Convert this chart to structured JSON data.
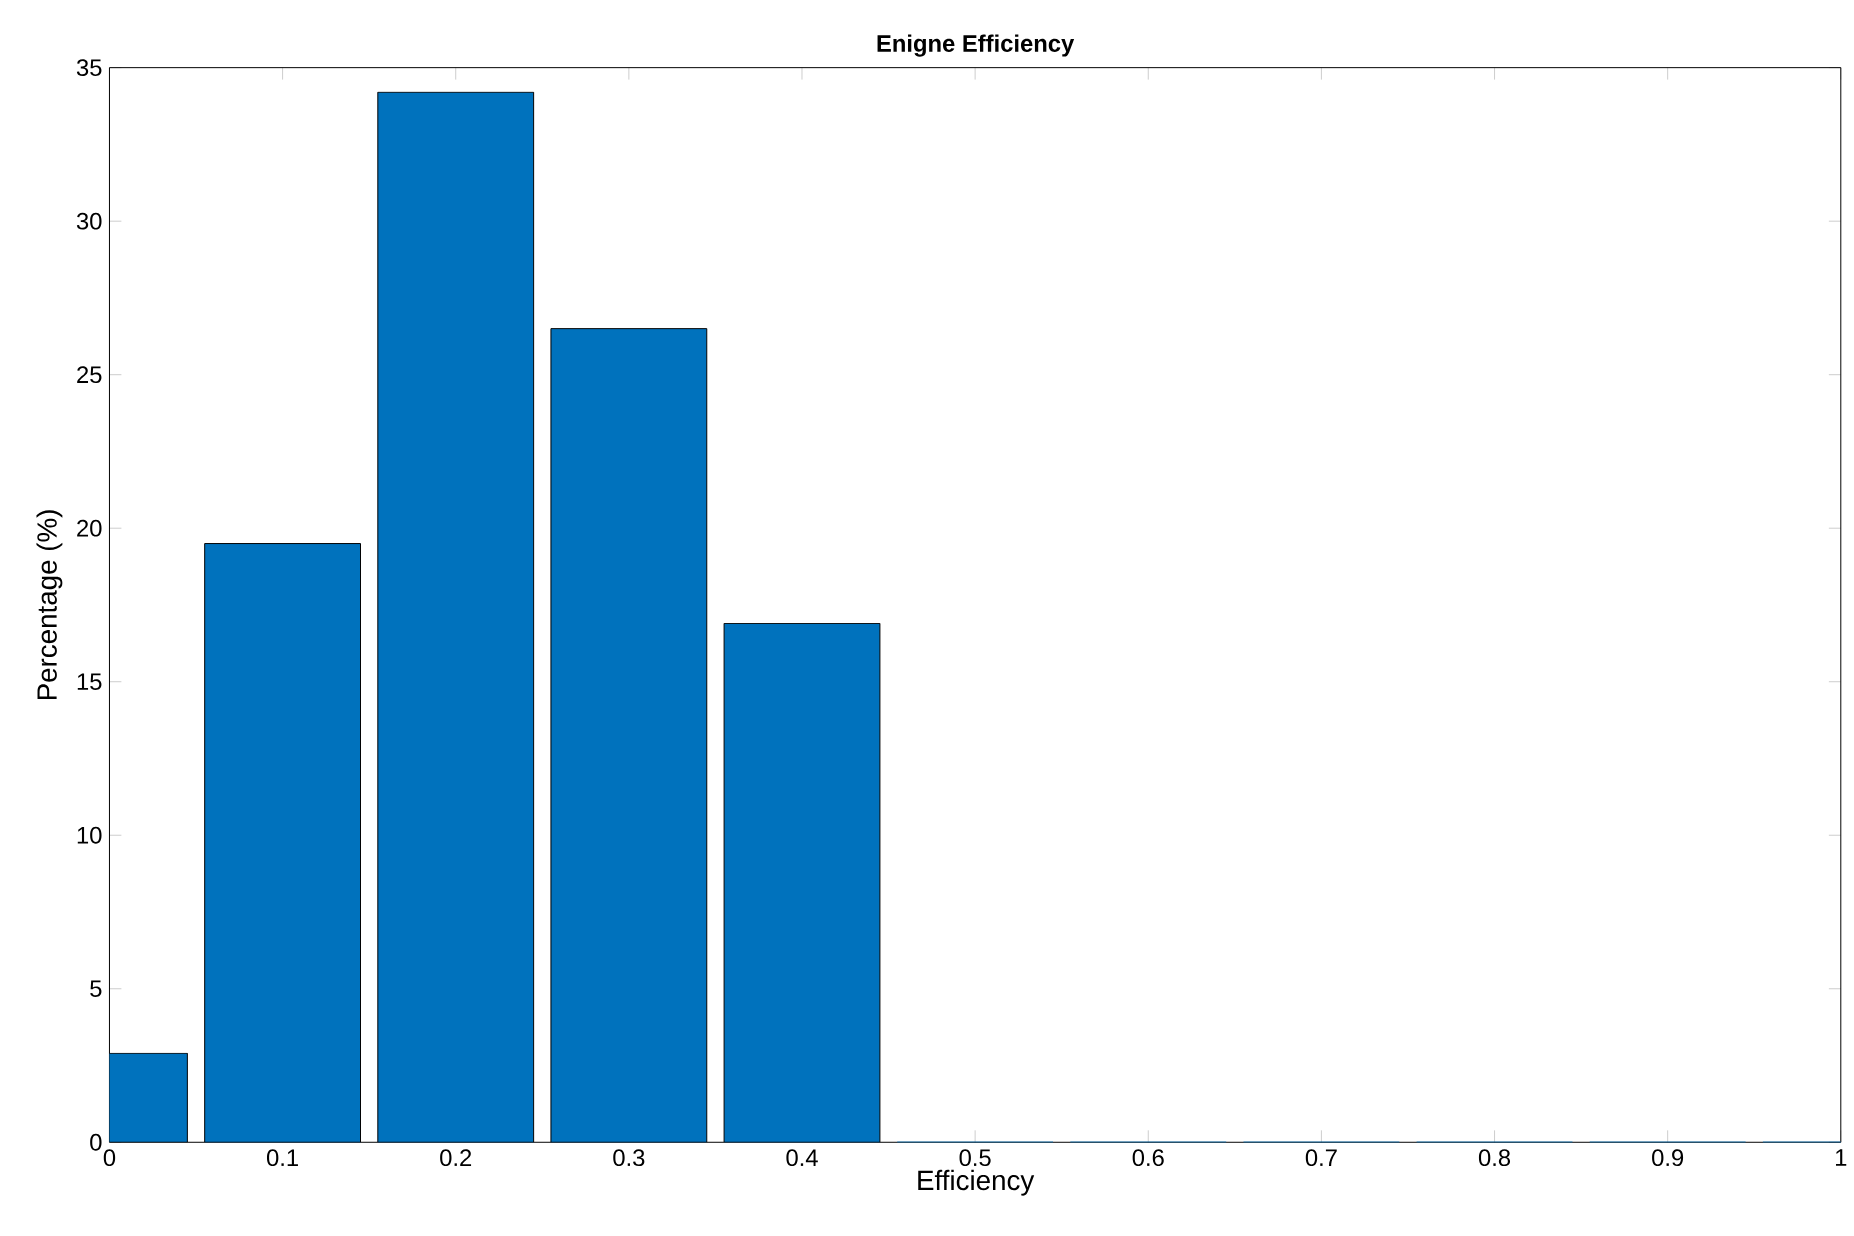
{
  "chart_data": {
    "type": "bar",
    "title": "Enigne Efficiency",
    "xlabel": "Efficiency",
    "ylabel": "Percentage (%)",
    "x": [
      0,
      0.1,
      0.2,
      0.3,
      0.4,
      0.5,
      0.6,
      0.7,
      0.8,
      0.9,
      1
    ],
    "values": [
      2.9,
      19.5,
      34.2,
      26.5,
      16.9,
      0,
      0,
      0,
      0,
      0,
      0
    ],
    "color": "#0072bd",
    "xlim": [
      0,
      1
    ],
    "xticks": [
      0,
      0.1,
      0.2,
      0.3,
      0.4,
      0.5,
      0.6,
      0.7,
      0.8,
      0.9,
      1
    ],
    "ylim": [
      0,
      35
    ],
    "yticks": [
      0,
      5,
      10,
      15,
      20,
      25,
      30,
      35
    ],
    "grid": false
  }
}
